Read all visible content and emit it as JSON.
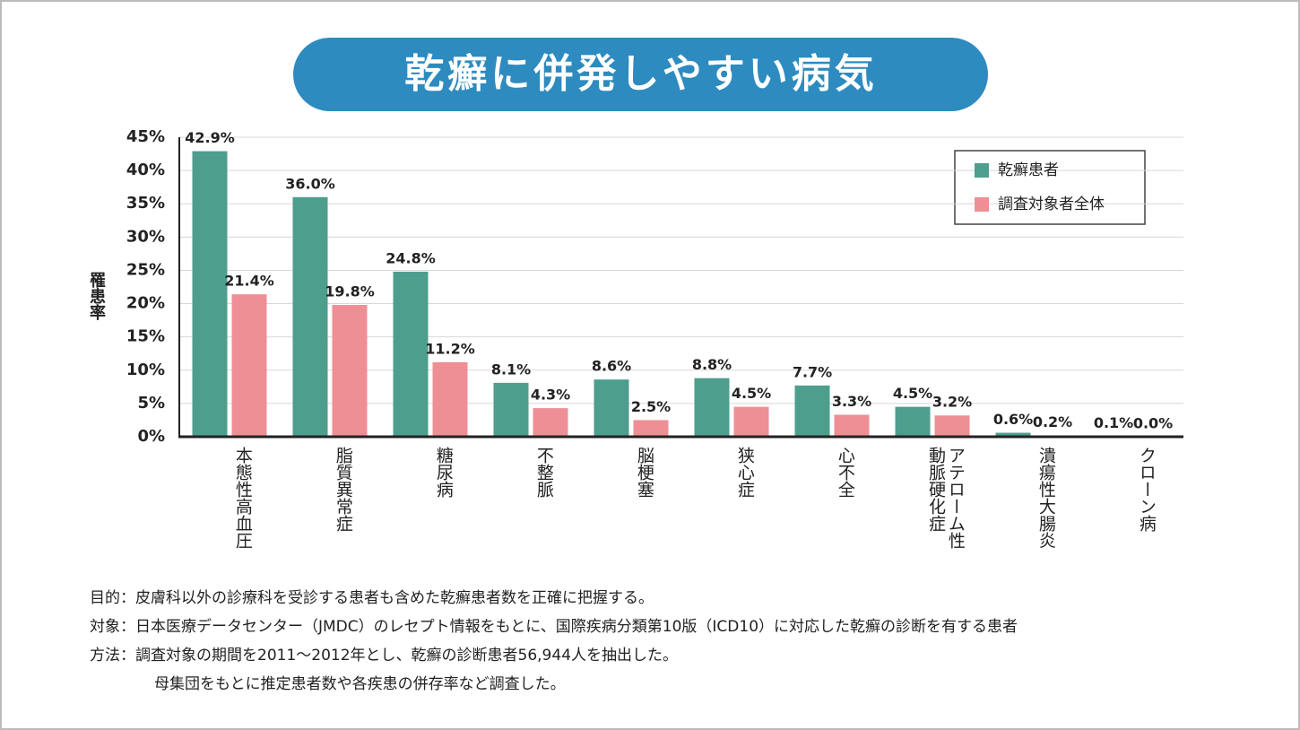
{
  "chart_data": {
    "type": "bar",
    "title": "乾癬に併発しやすい病気",
    "y_label": "罹患率",
    "categories": [
      "本態性高血圧",
      "脂質異常症",
      "糖尿病",
      "不整脈",
      "脳梗塞",
      "狭心症",
      "心不全",
      "アテローム性動脈硬化症",
      "潰瘍性大腸炎",
      "クローン病"
    ],
    "series": [
      {
        "name": "乾癬患者",
        "color": "#4e9e8e",
        "values": [
          42.9,
          36.0,
          24.8,
          8.1,
          8.6,
          8.8,
          7.7,
          4.5,
          0.6,
          0.1
        ],
        "value_labels": [
          "42.9%",
          "36.0%",
          "24.8%",
          "8.1%",
          "8.6%",
          "8.8%",
          "7.7%",
          "4.5%",
          "0.6%",
          "0.1%"
        ]
      },
      {
        "name": "調査対象者全体",
        "color": "#ee8f95",
        "values": [
          21.4,
          19.8,
          11.2,
          4.3,
          2.5,
          4.5,
          3.3,
          3.2,
          0.2,
          0.0
        ],
        "value_labels": [
          "21.4%",
          "19.8%",
          "11.2%",
          "4.3%",
          "2.5%",
          "4.5%",
          "3.3%",
          "3.2%",
          "0.2%",
          "0.0%"
        ]
      }
    ],
    "ylim": [
      0,
      45
    ],
    "yticks": [
      {
        "value": 0,
        "label": "0%"
      },
      {
        "value": 5,
        "label": "5%"
      },
      {
        "value": 10,
        "label": "10%"
      },
      {
        "value": 15,
        "label": "15%"
      },
      {
        "value": 20,
        "label": "20%"
      },
      {
        "value": 25,
        "label": "25%"
      },
      {
        "value": 30,
        "label": "30%"
      },
      {
        "value": 35,
        "label": "35%"
      },
      {
        "value": 40,
        "label": "40%"
      },
      {
        "value": 45,
        "label": "45%"
      }
    ],
    "grid": true,
    "legend_position": "upper right",
    "notes": [
      "目的：皮膚科以外の診療科を受診する患者も含めた乾癬患者数を正確に把握する。",
      "対象：日本医療データセンター（JMDC）のレセプト情報をもとに、国際疾病分類第10版（ICD10）に対応した乾癬の診断を有する患者",
      "方法：調査対象の期間を2011～2012年とし、乾癬の診断患者56,944人を抽出した。",
      "母集団をもとに推定患者数や各疾患の併存率など調査した。"
    ]
  }
}
